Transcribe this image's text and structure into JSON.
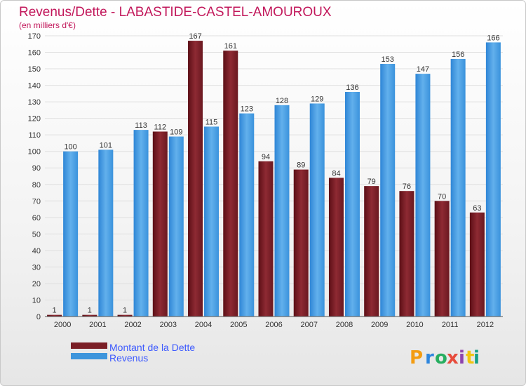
{
  "chart_data": {
    "type": "bar",
    "title": "Revenus/Dette - LABASTIDE-CASTEL-AMOUROUX",
    "subtitle": "(en milliers d'€)",
    "categories": [
      "2000",
      "2001",
      "2002",
      "2003",
      "2004",
      "2005",
      "2006",
      "2007",
      "2008",
      "2009",
      "2010",
      "2011",
      "2012"
    ],
    "series": [
      {
        "name": "Montant de la Dette",
        "color": "#7a1e25",
        "values": [
          1,
          1,
          1,
          112,
          167,
          161,
          94,
          89,
          84,
          79,
          76,
          70,
          63
        ]
      },
      {
        "name": "Revenus",
        "color": "#3d95dc",
        "values": [
          100,
          101,
          113,
          109,
          115,
          123,
          128,
          129,
          136,
          153,
          147,
          156,
          166
        ]
      }
    ],
    "ylim": [
      0,
      170
    ],
    "yticks": [
      0,
      10,
      20,
      30,
      40,
      50,
      60,
      70,
      80,
      90,
      100,
      110,
      120,
      130,
      140,
      150,
      160,
      170
    ],
    "grid": true,
    "legend_position": "bottom-left"
  },
  "logo": {
    "letters": [
      "P",
      "r",
      "o",
      "x",
      "i",
      "t",
      "i"
    ],
    "colors": [
      "#f39c12",
      "#2e86de",
      "#27ae60",
      "#e74c3c",
      "#8e44ad",
      "#f1c40f",
      "#16a085"
    ]
  }
}
